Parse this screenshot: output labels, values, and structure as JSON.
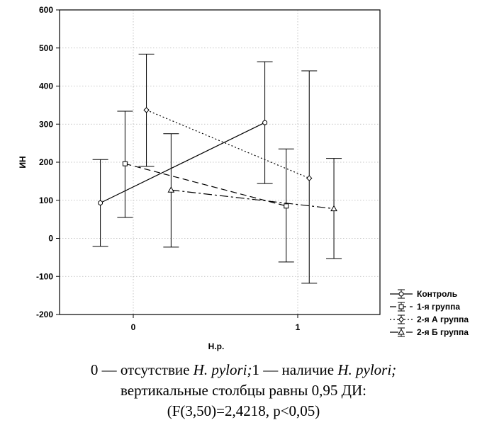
{
  "chart_data": {
    "type": "line",
    "xlabel": "H.p.",
    "ylabel": "ИН",
    "ylim": [
      -200,
      600
    ],
    "yticks": [
      "600",
      "500",
      "400",
      "300",
      "200",
      "100",
      "0",
      "-100",
      "-200"
    ],
    "xticks": [
      "0",
      "1"
    ],
    "grid": true,
    "legend_position": "right-bottom",
    "series": [
      {
        "name": "Контроль",
        "x": [
          -0.2,
          0.8
        ],
        "y": [
          93,
          304
        ],
        "lower": [
          -21,
          144
        ],
        "upper": [
          207,
          464
        ],
        "line": "solid",
        "marker": "circle"
      },
      {
        "name": "1-я группа",
        "x": [
          -0.05,
          0.93
        ],
        "y": [
          196,
          85
        ],
        "lower": [
          55,
          -62
        ],
        "upper": [
          334,
          235
        ],
        "line": "dashed",
        "marker": "square"
      },
      {
        "name": "2-я А группа",
        "x": [
          0.08,
          1.07
        ],
        "y": [
          337,
          158
        ],
        "lower": [
          189,
          -118
        ],
        "upper": [
          484,
          440
        ],
        "line": "dotted",
        "marker": "diamond"
      },
      {
        "name": "2-я Б группа",
        "x": [
          0.23,
          1.22
        ],
        "y": [
          127,
          78
        ],
        "lower": [
          -23,
          -53
        ],
        "upper": [
          275,
          210
        ],
        "line": "dash-dot",
        "marker": "triangle"
      }
    ]
  },
  "caption": {
    "line1_prefix": "0 — отсутствие ",
    "line1_italic1": "H. pylori;",
    "line1_middle": "1 — наличие ",
    "line1_italic2": "H. pylori;",
    "line2": "вертикальные столбцы равны 0,95 ДИ:",
    "line3": "(F(3,50)=2,4218, p<0,05)"
  }
}
